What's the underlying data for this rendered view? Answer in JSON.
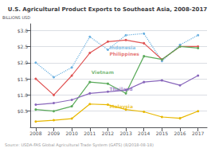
{
  "chart_data": {
    "type": "line",
    "title": "U.S. Agricultural Product Exports to Southeast Asia, 2008-2017",
    "y_label": "BILLIONS USD",
    "source": "Source: USDA-FAS Global Agricultural Trade System (GATS) (8/2018-08-18)",
    "x": [
      2008,
      2009,
      2010,
      2011,
      2012,
      2013,
      2014,
      2015,
      2016,
      2017
    ],
    "xlim": [
      2007.7,
      2017.5
    ],
    "xticks": [
      2008,
      2009,
      2010,
      2011,
      2012,
      2013,
      2014,
      2015,
      2016,
      2017
    ],
    "ylim": [
      0,
      3.2
    ],
    "yticks": [
      {
        "value": 0.5,
        "label": "$0.5"
      },
      {
        "value": 1.0,
        "label": "$1.0"
      },
      {
        "value": 1.5,
        "label": "$1.5"
      },
      {
        "value": 2.0,
        "label": "$2.0"
      },
      {
        "value": 2.5,
        "label": "$2.5"
      },
      {
        "value": 3.0,
        "label": "$3.0"
      }
    ],
    "grid": "y",
    "marker": "circle",
    "series": [
      {
        "name": "Indonesia",
        "color": "#6ab0e0",
        "line_style": "dotted",
        "values": [
          2.0,
          1.55,
          1.85,
          2.8,
          2.4,
          2.85,
          2.9,
          2.05,
          2.55,
          2.85
        ]
      },
      {
        "name": "Philippines",
        "color": "#e05555",
        "line_style": "solid",
        "values": [
          1.5,
          1.0,
          1.6,
          2.3,
          2.65,
          2.7,
          2.6,
          2.1,
          2.5,
          2.5
        ]
      },
      {
        "name": "Vietnam",
        "color": "#5aaa5a",
        "line_style": "solid",
        "values": [
          0.55,
          0.5,
          0.65,
          1.4,
          1.35,
          1.05,
          2.2,
          2.1,
          2.5,
          2.45
        ]
      },
      {
        "name": "Thailand",
        "color": "#8866bb",
        "line_style": "solid",
        "values": [
          0.7,
          0.75,
          0.85,
          1.05,
          1.1,
          1.15,
          1.4,
          1.45,
          1.3,
          1.6
        ]
      },
      {
        "name": "Malaysia",
        "color": "#e8b800",
        "line_style": "solid",
        "values": [
          0.18,
          0.22,
          0.27,
          0.72,
          0.7,
          0.55,
          0.48,
          0.32,
          0.28,
          0.5
        ]
      }
    ],
    "annotations": [
      {
        "text": "Indonesia",
        "x": 2012,
        "y": 2.47,
        "color": "#6ab0e0"
      },
      {
        "text": "Philippines",
        "x": 2012,
        "y": 2.28,
        "color": "#e05555"
      },
      {
        "text": "Vietnam",
        "x": 2011,
        "y": 1.72,
        "color": "#5aaa5a"
      },
      {
        "text": "Thailand",
        "x": 2012,
        "y": 1.2,
        "color": "#8866bb"
      },
      {
        "text": "Malaysia",
        "x": 2012,
        "y": 0.65,
        "color": "#e8b800"
      }
    ]
  }
}
